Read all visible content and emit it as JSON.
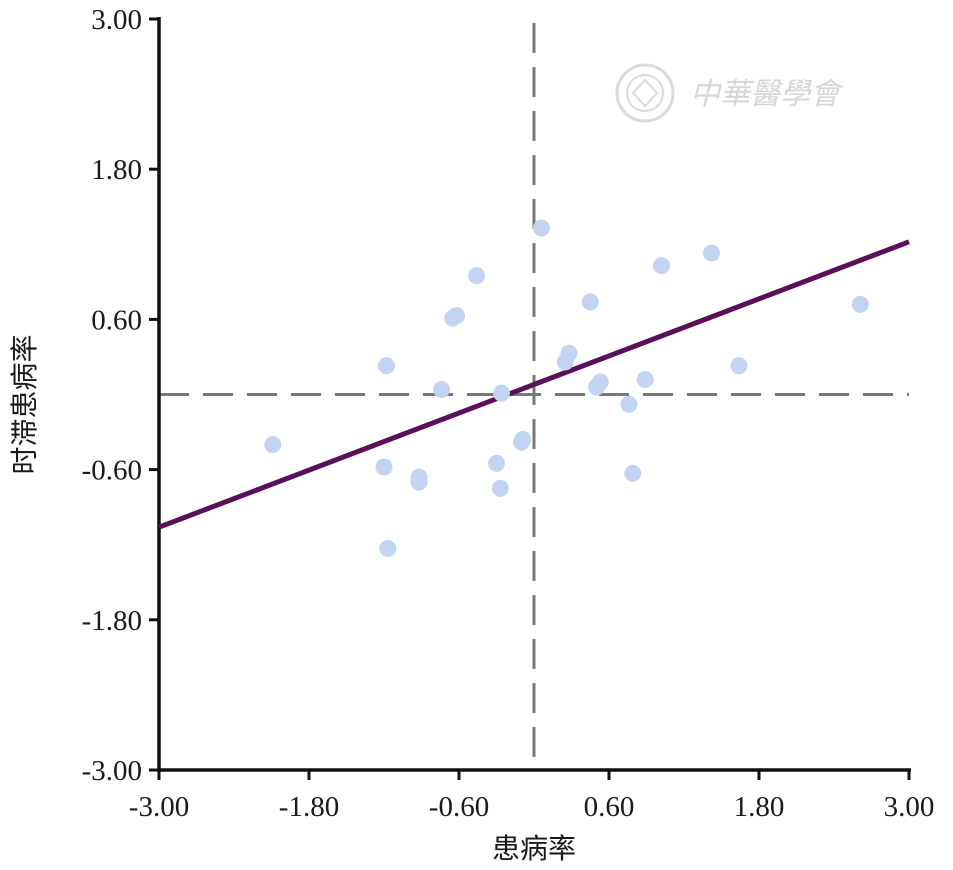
{
  "chart_data": {
    "type": "scatter",
    "xlabel": "患病率",
    "ylabel": "时滞患病率",
    "xlim": [
      -3.0,
      3.0
    ],
    "ylim": [
      -3.0,
      3.0
    ],
    "x_ticks": [
      "-3.00",
      "-1.80",
      "-0.60",
      "0.60",
      "1.80",
      "3.00"
    ],
    "y_ticks": [
      "3.00",
      "1.80",
      "0.60",
      "-0.60",
      "-1.80",
      "-3.00"
    ],
    "x_tick_values": [
      -3.0,
      -1.8,
      -0.6,
      0.6,
      1.8,
      3.0
    ],
    "y_tick_values": [
      3.0,
      1.8,
      0.6,
      -0.6,
      -1.8,
      -3.0
    ],
    "mean_lines": {
      "x": 0.0,
      "y": 0.0
    },
    "regression": {
      "slope": 0.38,
      "intercept": 0.08
    },
    "points": [
      {
        "x": 0.06,
        "y": 1.33
      },
      {
        "x": 1.02,
        "y": 1.03
      },
      {
        "x": 1.42,
        "y": 1.13
      },
      {
        "x": -0.46,
        "y": 0.95
      },
      {
        "x": 0.45,
        "y": 0.74
      },
      {
        "x": -0.65,
        "y": 0.61
      },
      {
        "x": -0.62,
        "y": 0.63
      },
      {
        "x": 2.61,
        "y": 0.72
      },
      {
        "x": -1.18,
        "y": 0.23
      },
      {
        "x": 0.28,
        "y": 0.33
      },
      {
        "x": 0.25,
        "y": 0.26
      },
      {
        "x": 1.64,
        "y": 0.23
      },
      {
        "x": 0.53,
        "y": 0.1
      },
      {
        "x": 0.5,
        "y": 0.06
      },
      {
        "x": 0.89,
        "y": 0.12
      },
      {
        "x": -0.74,
        "y": 0.04
      },
      {
        "x": -0.26,
        "y": 0.01
      },
      {
        "x": 0.76,
        "y": -0.08
      },
      {
        "x": -0.09,
        "y": -0.36
      },
      {
        "x": -0.1,
        "y": -0.38
      },
      {
        "x": -2.09,
        "y": -0.4
      },
      {
        "x": -0.3,
        "y": -0.55
      },
      {
        "x": -1.2,
        "y": -0.58
      },
      {
        "x": 0.79,
        "y": -0.63
      },
      {
        "x": -0.92,
        "y": -0.66
      },
      {
        "x": -0.92,
        "y": -0.7
      },
      {
        "x": -0.27,
        "y": -0.75
      },
      {
        "x": -1.17,
        "y": -1.23
      }
    ],
    "point_color": "#c3d3f2",
    "line_color": "#5a0e5c",
    "mean_line_color": "#777777"
  },
  "watermark": {
    "text": "中華醫學會",
    "color": "#d6d6d6"
  }
}
